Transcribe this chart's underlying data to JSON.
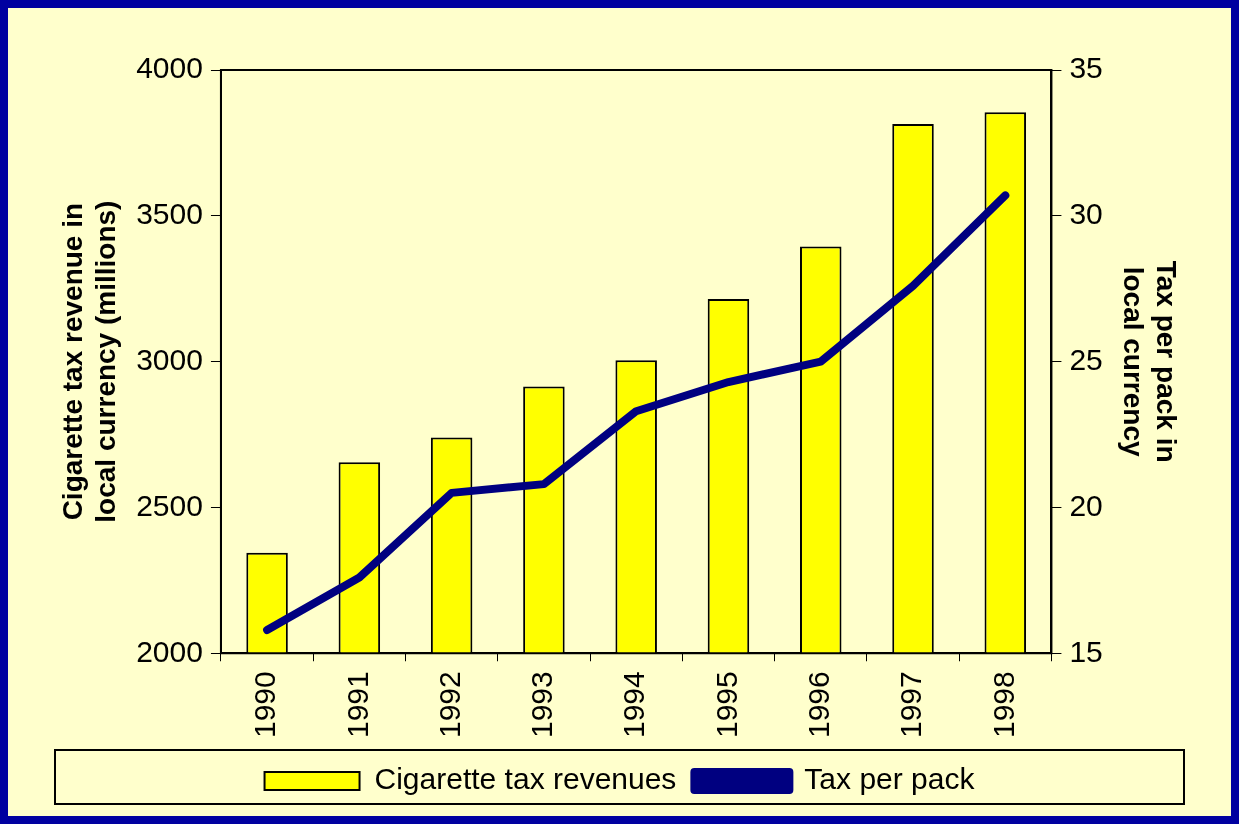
{
  "chart_data": {
    "type": "bar",
    "categories": [
      "1990",
      "1991",
      "1992",
      "1993",
      "1994",
      "1995",
      "1996",
      "1997",
      "1998"
    ],
    "series": [
      {
        "name": "Cigarette tax revenues",
        "color": "#ffff00",
        "values": [
          2345,
          2655,
          2740,
          2915,
          3005,
          3215,
          3395,
          3815,
          3855
        ]
      },
      {
        "name": "Tax per pack",
        "type": "line",
        "axis": "y2",
        "color": "#000080",
        "values": [
          15.8,
          17.6,
          20.5,
          20.8,
          23.3,
          24.3,
          25.0,
          27.6,
          30.7
        ]
      }
    ],
    "ylabel": "Cigarette tax revenue in local currency (millions)",
    "y2label": "Tax per pack in local currency",
    "ylim": [
      2000,
      4000
    ],
    "yticks": [
      2000,
      2500,
      3000,
      3500,
      4000
    ],
    "y2lim": [
      15,
      35
    ],
    "y2ticks": [
      15,
      20,
      25,
      30,
      35
    ],
    "grid": false,
    "legend": "bottom",
    "marker": "none"
  }
}
